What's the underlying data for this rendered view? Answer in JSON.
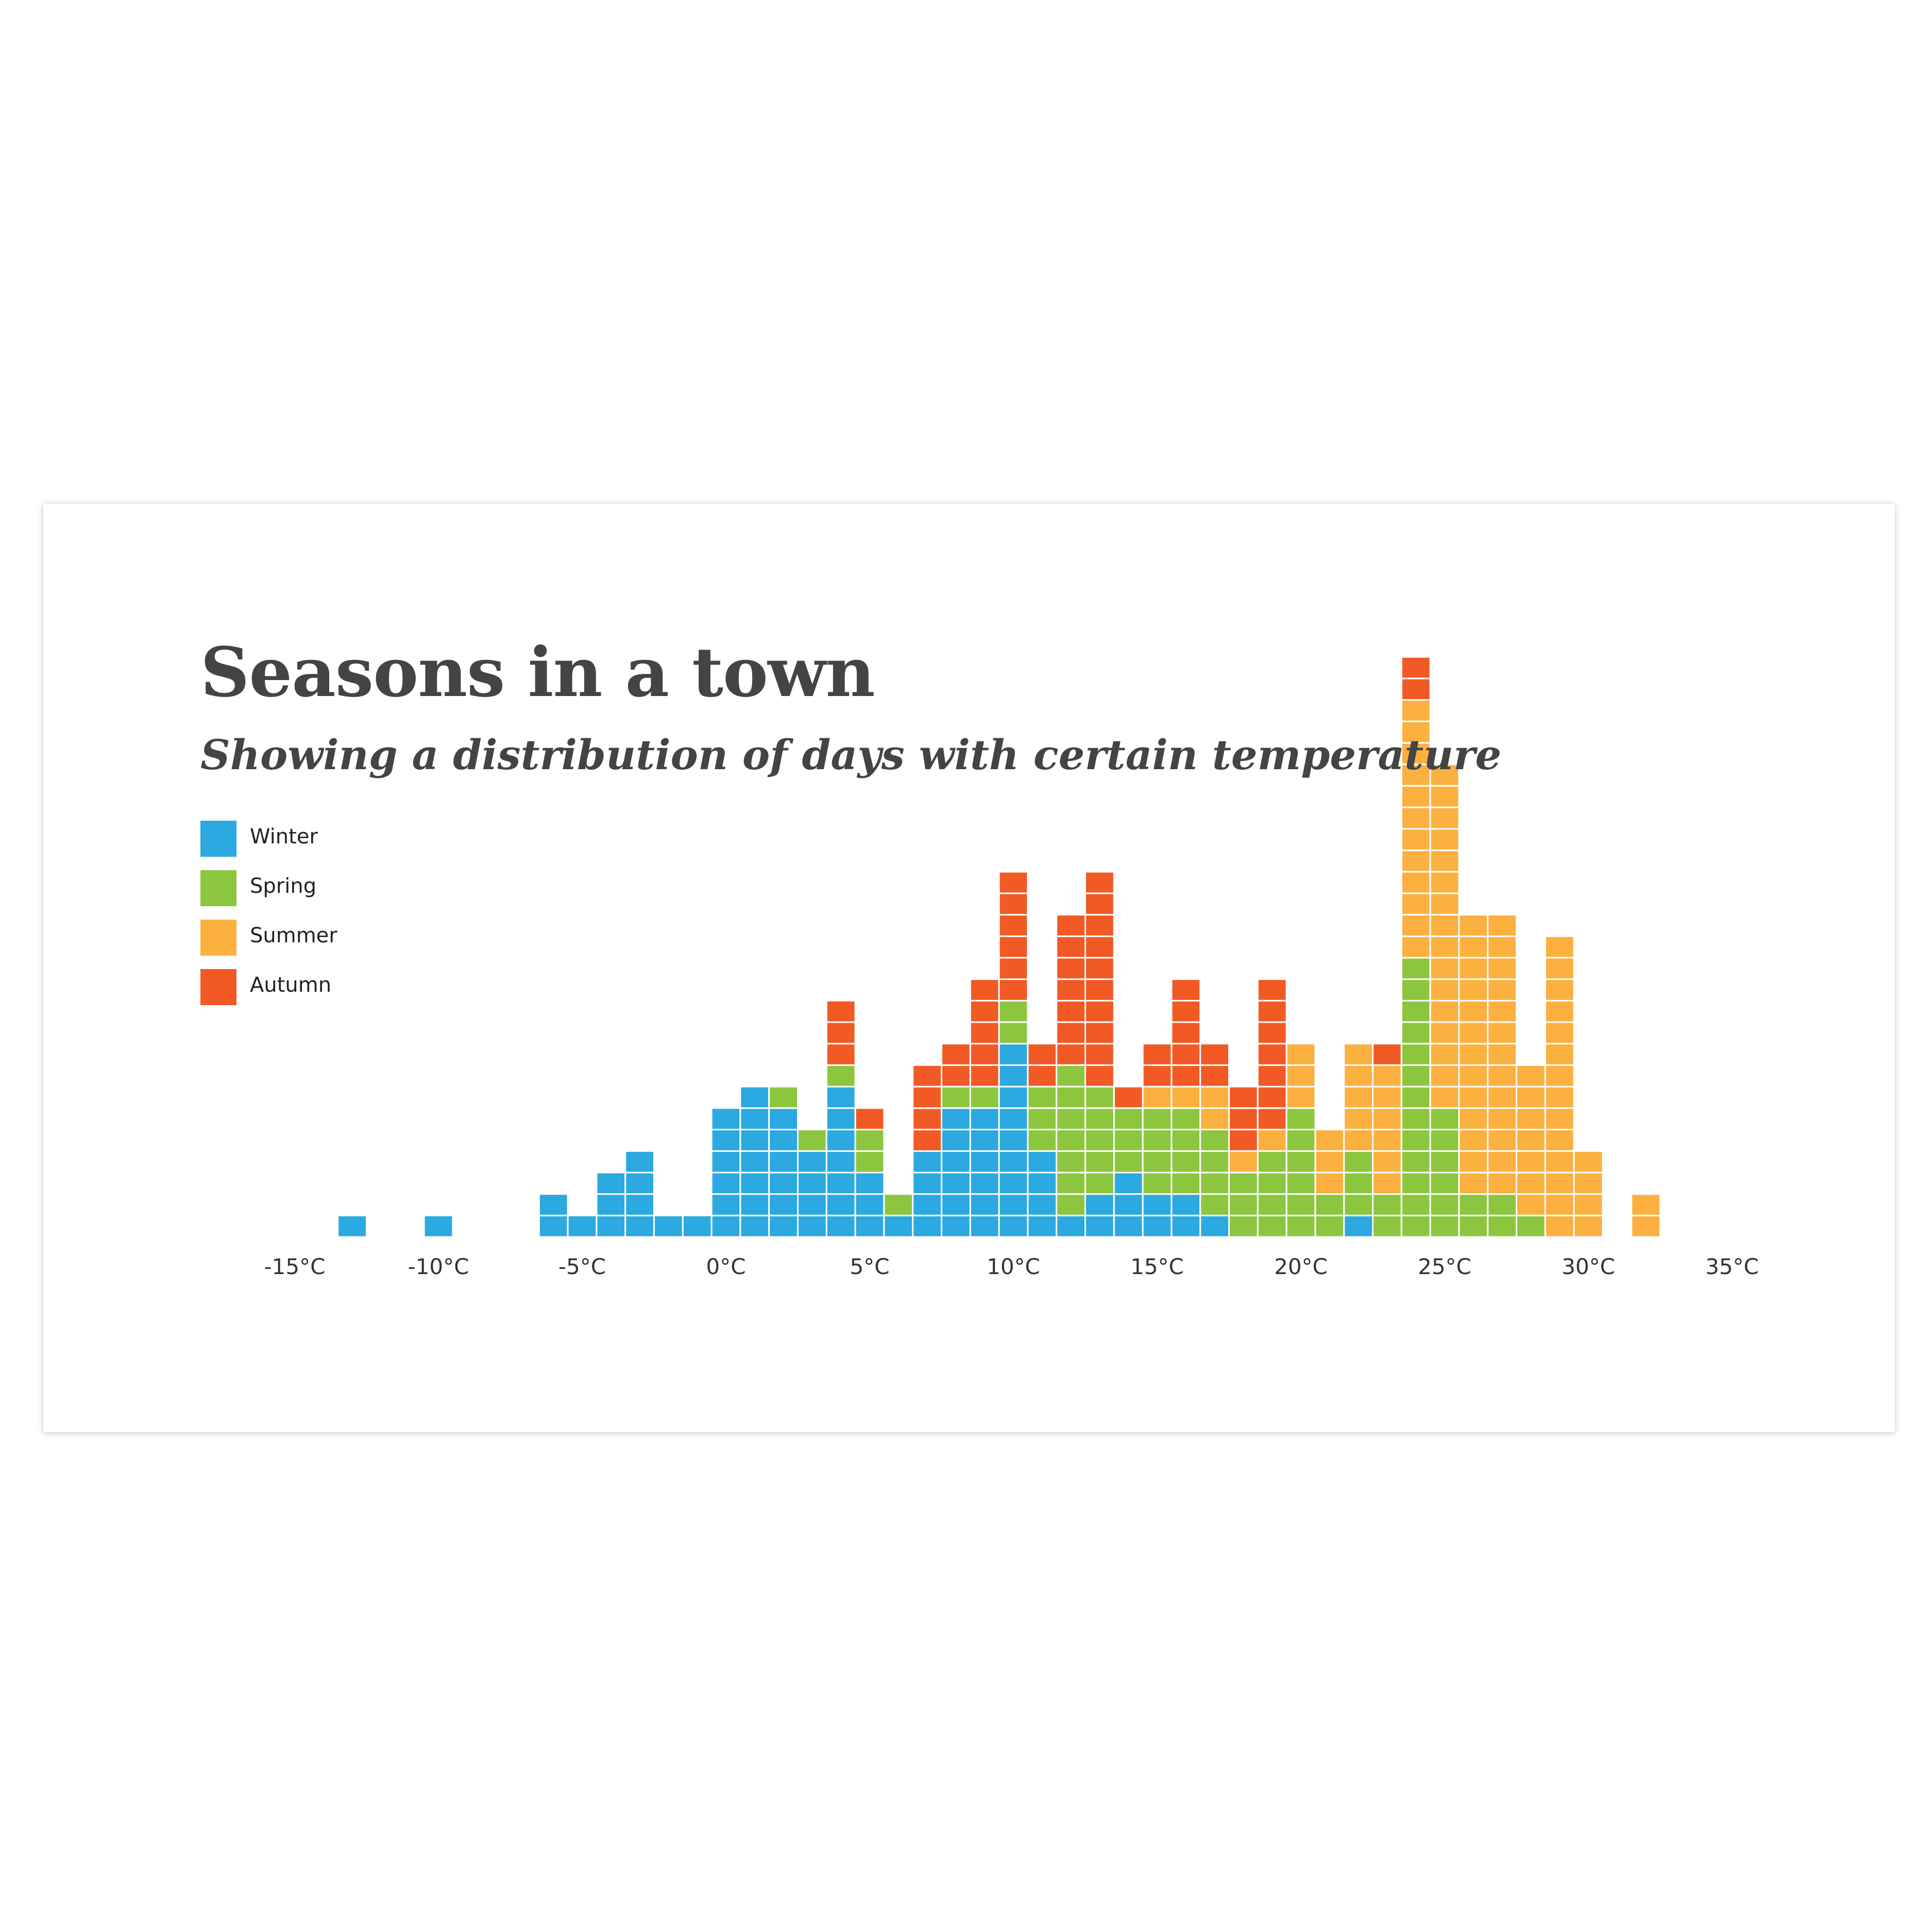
{
  "title": "Seasons in a town",
  "subtitle": "Showing a distribution of days with certain temperature",
  "legend": [
    {
      "label": "Winter",
      "color": "#2ba9e0"
    },
    {
      "label": "Spring",
      "color": "#8cc63f"
    },
    {
      "label": "Summer",
      "color": "#fbb040"
    },
    {
      "label": "Autumn",
      "color": "#f15a24"
    }
  ],
  "chart_data": {
    "type": "bar",
    "stacked": true,
    "unit_style": "each day is one stacked cell",
    "xlabel": "",
    "ylabel": "",
    "xlim": [
      -15,
      35
    ],
    "x_ticks": [
      -15,
      -10,
      -5,
      0,
      5,
      10,
      15,
      20,
      25,
      30,
      35
    ],
    "x_tick_labels": [
      "-15°C",
      "-10°C",
      "-5°C",
      "0°C",
      "5°C",
      "10°C",
      "15°C",
      "20°C",
      "25°C",
      "30°C",
      "35°C"
    ],
    "bin_width": 1,
    "categories": [
      -13,
      -10,
      -6,
      -5,
      -4,
      -3,
      -2,
      -1,
      0,
      1,
      2,
      3,
      4,
      5,
      6,
      7,
      8,
      9,
      10,
      11,
      12,
      13,
      14,
      15,
      16,
      17,
      18,
      19,
      20,
      21,
      22,
      23,
      24,
      25,
      26,
      27,
      28,
      29,
      30,
      32
    ],
    "series": [
      {
        "name": "Winter",
        "color": "#2ba9e0",
        "values": [
          1,
          1,
          2,
          1,
          3,
          4,
          1,
          1,
          6,
          7,
          6,
          4,
          7,
          3,
          1,
          4,
          6,
          6,
          9,
          4,
          1,
          2,
          3,
          2,
          2,
          1,
          0,
          0,
          0,
          0,
          1,
          0,
          0,
          0,
          0,
          0,
          0,
          0,
          0,
          0
        ]
      },
      {
        "name": "Spring",
        "color": "#8cc63f",
        "values": [
          0,
          0,
          0,
          0,
          0,
          0,
          0,
          0,
          0,
          0,
          1,
          1,
          1,
          2,
          1,
          0,
          1,
          1,
          2,
          3,
          7,
          5,
          3,
          4,
          4,
          4,
          3,
          4,
          6,
          2,
          3,
          2,
          13,
          6,
          2,
          2,
          1,
          0,
          0,
          0
        ]
      },
      {
        "name": "Summer",
        "color": "#fbb040",
        "values": [
          0,
          0,
          0,
          0,
          0,
          0,
          0,
          0,
          0,
          0,
          0,
          0,
          0,
          0,
          0,
          0,
          0,
          0,
          0,
          0,
          0,
          0,
          0,
          1,
          1,
          2,
          1,
          1,
          3,
          3,
          5,
          6,
          12,
          16,
          13,
          13,
          7,
          14,
          4,
          2
        ]
      },
      {
        "name": "Autumn",
        "color": "#f15a24",
        "values": [
          0,
          0,
          0,
          0,
          0,
          0,
          0,
          0,
          0,
          0,
          0,
          0,
          3,
          1,
          0,
          4,
          2,
          5,
          6,
          2,
          7,
          10,
          1,
          2,
          5,
          2,
          3,
          7,
          0,
          0,
          0,
          1,
          2,
          0,
          0,
          0,
          0,
          0,
          0,
          0
        ]
      }
    ],
    "grid": false,
    "legend_position": "top-left"
  }
}
